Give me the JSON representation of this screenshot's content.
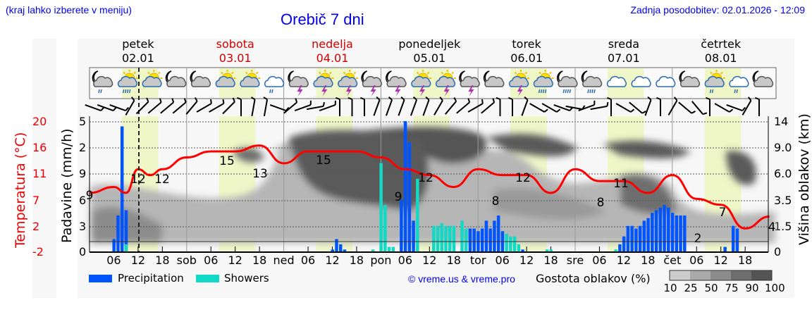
{
  "header": {
    "note": "(kraj lahko izberete v meniju)",
    "title": "Orebič 7 dni",
    "updated": "Zadnja posodobitev: 02.01.2026 - 12:09"
  },
  "days": [
    {
      "name": "petek",
      "date": "02.01",
      "weekend": false
    },
    {
      "name": "sobota",
      "date": "03.01",
      "weekend": true
    },
    {
      "name": "nedelja",
      "date": "04.01",
      "weekend": true
    },
    {
      "name": "ponedeljek",
      "date": "05.01",
      "weekend": false
    },
    {
      "name": "torek",
      "date": "06.01",
      "weekend": false
    },
    {
      "name": "sreda",
      "date": "07.01",
      "weekend": false
    },
    {
      "name": "četrtek",
      "date": "08.01",
      "weekend": false
    }
  ],
  "icons": [
    "moon-cloud-drizzle",
    "sun-cloud-rain",
    "sun-cloud",
    "moon-cloud",
    "moon-cloud",
    "sun-cloud",
    "sun-cloud",
    "cloud-drizzle",
    "moon-cloud-thunder",
    "sun-cloud-thunder",
    "sun-cloud-thunder",
    "moon-cloud-thunder",
    "moon-cloud-thunder",
    "sun-cloud-thunder",
    "sun-cloud-thunder",
    "moon-cloud-thunder",
    "moon-cloud",
    "sun-cloud-thunder",
    "sun-cloud-rain",
    "moon-cloud-rain",
    "moon-cloud-rain",
    "overcast",
    "overcast",
    "overcast",
    "moon-cloud",
    "sun-cloud-drizzle",
    "cloud-drizzle",
    "moon-cloud"
  ],
  "axes": {
    "left_title": "Padavine (mm/h)",
    "temp_title": "Temperatura (°C)",
    "right_title": "Višina oblakov (km)",
    "precip_ticks": [
      "5",
      "2",
      "9",
      "6",
      "3",
      "0"
    ],
    "temp_ticks": [
      "20",
      "16",
      "11",
      "7",
      "2",
      "-2"
    ],
    "height_ticks": [
      "14",
      "9.0",
      "6.0",
      "3.5",
      "1.5",
      "0"
    ],
    "x_ticks": [
      "06",
      "12",
      "18",
      "sob",
      "06",
      "12",
      "18",
      "ned",
      "06",
      "12",
      "18",
      "pon",
      "06",
      "12",
      "18",
      "tor",
      "06",
      "12",
      "18",
      "sre",
      "06",
      "12",
      "18",
      "čet",
      "06",
      "12",
      "18"
    ]
  },
  "legend": {
    "precip_label": "Precipitation",
    "showers_label": "Showers",
    "precip_color": "#0055ff",
    "showers_color": "#11d9c6",
    "copyright": "© vreme.us & vreme.pro",
    "density_title": "Gostota oblakov (%)",
    "density_ticks": [
      "10",
      "25",
      "50",
      "75",
      "90",
      "100"
    ],
    "density_colors": [
      "#cccccc",
      "#aaaaaa",
      "#8c8c8c",
      "#6e6e6e",
      "#545454"
    ]
  },
  "chart_data": {
    "type": "line+bar",
    "title": "Orebič 7 dni",
    "xlabel": "",
    "ylabel": "Padavine (mm/h)",
    "y2label": "Temperatura (°C)",
    "y3label": "Višina oblakov (km)",
    "temperature_series": {
      "name": "Temperatura",
      "color": "#ff0000",
      "hours_from_start": [
        0,
        6,
        9,
        12,
        15,
        18,
        24,
        30,
        36,
        42,
        48,
        54,
        60,
        66,
        72,
        78,
        84,
        90,
        96,
        102,
        108,
        114,
        120,
        126,
        132,
        138,
        144,
        150,
        156,
        162,
        168
      ],
      "values": [
        8,
        9,
        8,
        12,
        11,
        12,
        14,
        15,
        15,
        16,
        13,
        15,
        15,
        15,
        14,
        12,
        11,
        9,
        12,
        11,
        11,
        8,
        12,
        10,
        10,
        8,
        11,
        7,
        6,
        2,
        4
      ],
      "annotations": [
        {
          "label": "9",
          "at": "02.01 00"
        },
        {
          "label": "12",
          "at": "02.01 12"
        },
        {
          "label": "12",
          "at": "02.01 18"
        },
        {
          "label": "15",
          "at": "03.01 12"
        },
        {
          "label": "13",
          "at": "03.01 18"
        },
        {
          "label": "15",
          "at": "04.01 12"
        },
        {
          "label": "9",
          "at": "05.01 00"
        },
        {
          "label": "12",
          "at": "05.01 12"
        },
        {
          "label": "8",
          "at": "06.01 00"
        },
        {
          "label": "12",
          "at": "06.01 12"
        },
        {
          "label": "8",
          "at": "07.01 00"
        },
        {
          "label": "11",
          "at": "07.01 12"
        },
        {
          "label": "2",
          "at": "08.01 06"
        },
        {
          "label": "7",
          "at": "08.01 12"
        },
        {
          "label": "4",
          "at": "09.01 00"
        }
      ],
      "ylim": [
        -2,
        20
      ]
    },
    "precipitation_series": {
      "name": "Precipitation",
      "color": "#0055ff",
      "peaks_mm_h": [
        {
          "at": "02.01 08",
          "value": 4.8
        },
        {
          "at": "04.01 10",
          "value": 5
        },
        {
          "at": "06.01 20",
          "value": 1.8
        },
        {
          "at": "08.01 14",
          "value": 1.4
        }
      ]
    },
    "showers_series": {
      "name": "Showers",
      "color": "#11d9c6",
      "peaks_mm_h": [
        {
          "at": "04.01 02",
          "value": 3.4
        },
        {
          "at": "04.01 16",
          "value": 2.8
        },
        {
          "at": "05.01 00",
          "value": 1.5
        }
      ]
    },
    "cloud_density_scale": [
      10,
      25,
      50,
      75,
      90,
      100
    ],
    "precip_ylim": [
      0,
      5
    ],
    "height_ylim": [
      0,
      14
    ],
    "grid": true,
    "legend_position": "bottom"
  }
}
